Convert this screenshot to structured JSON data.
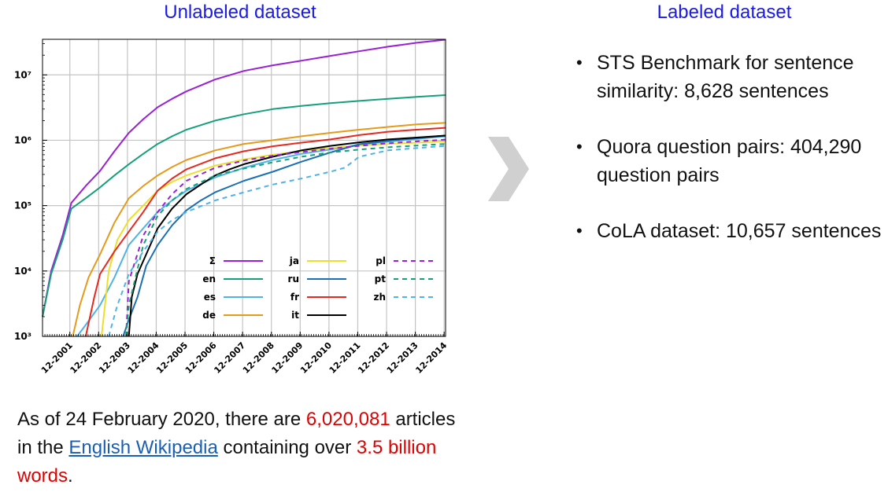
{
  "headings": {
    "left": "Unlabeled dataset",
    "right": "Labeled dataset"
  },
  "caption": {
    "t1": "As of 24 February 2020, there are ",
    "articles": "6,020,081",
    "t2": " articles in the ",
    "link": "English Wikipedia",
    "t3": " containing over ",
    "words": "3.5 billion words",
    "t4": "."
  },
  "bullets": [
    "STS Benchmark for sentence similarity: 8,628 sentences",
    "Quora question pairs: 404,290 question pairs",
    "CoLA dataset: 10,657 sentences"
  ],
  "colors": {
    "heading": "#1a1ae6",
    "highlight": "#e00000",
    "link": "#1a5fb4",
    "arrow": "#d0d0d0"
  },
  "chart_data": {
    "type": "line",
    "title": "",
    "xlabel": "",
    "ylabel": "",
    "yscale": "log",
    "xlim": [
      2001.0,
      2015.0
    ],
    "ylim": [
      1000,
      35000000
    ],
    "grid": true,
    "legend_position": "bottom-right",
    "x_tick_values": [
      2001.95,
      2002.95,
      2003.95,
      2004.95,
      2005.95,
      2006.95,
      2007.95,
      2008.95,
      2009.95,
      2010.95,
      2011.95,
      2012.95,
      2013.95,
      2014.95
    ],
    "x_tick_labels": [
      "12-2001",
      "12-2002",
      "12-2003",
      "12-2004",
      "12-2005",
      "12-2006",
      "12-2007",
      "12-2008",
      "12-2009",
      "12-2010",
      "12-2011",
      "12-2012",
      "12-2013",
      "12-2014"
    ],
    "y_tick_values": [
      1000,
      10000,
      100000,
      1000000,
      10000000
    ],
    "y_tick_labels": [
      "10³",
      "10⁴",
      "10⁵",
      "10⁶",
      "10⁷"
    ],
    "series": [
      {
        "name": "Σ",
        "color": "#9a1fd6",
        "dash": "solid",
        "x": [
          2001.0,
          2001.3,
          2001.7,
          2002.0,
          2002.5,
          2003.0,
          2003.5,
          2004.0,
          2004.5,
          2005.0,
          2005.5,
          2006.0,
          2007.0,
          2008.0,
          2009.0,
          2010.0,
          2011.0,
          2012.0,
          2013.0,
          2014.0,
          2015.0
        ],
        "y": [
          2000,
          10000,
          35000,
          110000,
          200000,
          340000,
          680000,
          1300000,
          2100000,
          3200000,
          4300000,
          5600000,
          8500000,
          11500000,
          14000000,
          16500000,
          19500000,
          23000000,
          27000000,
          31000000,
          34500000
        ]
      },
      {
        "name": "en",
        "color": "#15a07a",
        "dash": "solid",
        "x": [
          2001.0,
          2001.3,
          2001.7,
          2002.0,
          2002.5,
          2003.0,
          2003.5,
          2004.0,
          2004.5,
          2005.0,
          2005.5,
          2006.0,
          2007.0,
          2008.0,
          2009.0,
          2010.0,
          2011.0,
          2012.0,
          2013.0,
          2014.0,
          2015.0
        ],
        "y": [
          2000,
          9000,
          30000,
          90000,
          130000,
          190000,
          290000,
          430000,
          620000,
          880000,
          1150000,
          1450000,
          2000000,
          2500000,
          3000000,
          3350000,
          3700000,
          4000000,
          4300000,
          4600000,
          4900000
        ]
      },
      {
        "name": "es",
        "color": "#4fb3e8",
        "dash": "solid",
        "x": [
          2002.2,
          2002.5,
          2003.0,
          2003.5,
          2004.0,
          2004.5,
          2005.0,
          2005.5,
          2006.0,
          2007.0,
          2008.0,
          2009.0,
          2010.0,
          2011.0,
          2012.0,
          2013.0,
          2014.0,
          2015.0
        ],
        "y": [
          1000,
          1500,
          3000,
          8000,
          25000,
          45000,
          80000,
          120000,
          170000,
          270000,
          380000,
          500000,
          620000,
          720000,
          860000,
          950000,
          1050000,
          1150000
        ]
      },
      {
        "name": "de",
        "color": "#e69a1a",
        "dash": "solid",
        "x": [
          2002.05,
          2002.3,
          2002.6,
          2003.0,
          2003.5,
          2004.0,
          2004.5,
          2005.0,
          2005.5,
          2006.0,
          2007.0,
          2008.0,
          2009.0,
          2010.0,
          2011.0,
          2012.0,
          2013.0,
          2014.0,
          2015.0
        ],
        "y": [
          1000,
          3000,
          8000,
          18000,
          55000,
          130000,
          200000,
          290000,
          390000,
          500000,
          700000,
          880000,
          1000000,
          1150000,
          1300000,
          1450000,
          1600000,
          1750000,
          1850000
        ]
      },
      {
        "name": "ja",
        "color": "#ecdf2a",
        "dash": "solid",
        "x": [
          2003.05,
          2003.3,
          2003.6,
          2004.0,
          2004.5,
          2005.0,
          2005.5,
          2006.0,
          2007.0,
          2008.0,
          2009.0,
          2010.0,
          2011.0,
          2012.0,
          2013.0,
          2014.0,
          2015.0
        ],
        "y": [
          1000,
          10000,
          30000,
          60000,
          100000,
          170000,
          230000,
          290000,
          410000,
          510000,
          600000,
          680000,
          760000,
          830000,
          880000,
          920000,
          960000
        ]
      },
      {
        "name": "ru",
        "color": "#1a6fb5",
        "dash": "solid",
        "x": [
          2003.8,
          2004.0,
          2004.3,
          2004.6,
          2005.0,
          2005.5,
          2006.0,
          2006.5,
          2007.0,
          2008.0,
          2009.0,
          2010.0,
          2011.0,
          2012.0,
          2013.0,
          2014.0,
          2015.0
        ],
        "y": [
          1000,
          1800,
          4000,
          12000,
          25000,
          50000,
          85000,
          120000,
          160000,
          240000,
          330000,
          470000,
          650000,
          870000,
          980000,
          1080000,
          1180000
        ]
      },
      {
        "name": "fr",
        "color": "#e8281e",
        "dash": "solid",
        "x": [
          2002.5,
          2002.8,
          2003.0,
          2003.5,
          2004.0,
          2004.5,
          2005.0,
          2005.5,
          2006.0,
          2007.0,
          2008.0,
          2009.0,
          2010.0,
          2011.0,
          2012.0,
          2013.0,
          2014.0,
          2015.0
        ],
        "y": [
          1000,
          4000,
          9000,
          20000,
          40000,
          80000,
          170000,
          260000,
          360000,
          530000,
          680000,
          810000,
          920000,
          1030000,
          1200000,
          1350000,
          1450000,
          1550000
        ]
      },
      {
        "name": "it",
        "color": "#000000",
        "dash": "solid",
        "x": [
          2004.0,
          2004.1,
          2004.3,
          2004.6,
          2005.0,
          2005.5,
          2006.0,
          2006.5,
          2007.0,
          2007.5,
          2008.0,
          2009.0,
          2010.0,
          2011.0,
          2012.0,
          2013.0,
          2014.0,
          2015.0
        ],
        "y": [
          1000,
          4000,
          9000,
          18000,
          45000,
          90000,
          150000,
          210000,
          290000,
          360000,
          430000,
          560000,
          700000,
          820000,
          930000,
          1030000,
          1100000,
          1180000
        ]
      },
      {
        "name": "pl",
        "color": "#9a1fd6",
        "dash": "dashed",
        "x": [
          2003.9,
          2004.0,
          2004.5,
          2005.0,
          2005.5,
          2006.0,
          2007.0,
          2008.0,
          2009.0,
          2010.0,
          2011.0,
          2012.0,
          2013.0,
          2014.0,
          2015.0
        ],
        "y": [
          1000,
          7000,
          35000,
          80000,
          150000,
          240000,
          380000,
          490000,
          580000,
          660000,
          740000,
          820000,
          900000,
          960000,
          1020000
        ]
      },
      {
        "name": "pt",
        "color": "#15a07a",
        "dash": "dashed",
        "x": [
          2003.9,
          2004.0,
          2004.2,
          2004.5,
          2005.0,
          2005.5,
          2006.0,
          2007.0,
          2008.0,
          2009.0,
          2010.0,
          2011.0,
          2012.0,
          2013.0,
          2014.0,
          2015.0
        ],
        "y": [
          1000,
          3000,
          7000,
          25000,
          70000,
          120000,
          180000,
          290000,
          370000,
          460000,
          560000,
          650000,
          720000,
          780000,
          830000,
          880000
        ]
      },
      {
        "name": "zh",
        "color": "#4fb3e8",
        "dash": "dashed",
        "x": [
          2003.3,
          2003.6,
          2004.0,
          2004.5,
          2005.0,
          2005.5,
          2006.0,
          2007.0,
          2008.0,
          2009.0,
          2010.0,
          2011.0,
          2011.5,
          2012.0,
          2013.0,
          2014.0,
          2015.0
        ],
        "y": [
          1000,
          3000,
          9000,
          20000,
          40000,
          60000,
          80000,
          120000,
          160000,
          210000,
          260000,
          330000,
          380000,
          560000,
          700000,
          760000,
          820000
        ]
      }
    ]
  }
}
